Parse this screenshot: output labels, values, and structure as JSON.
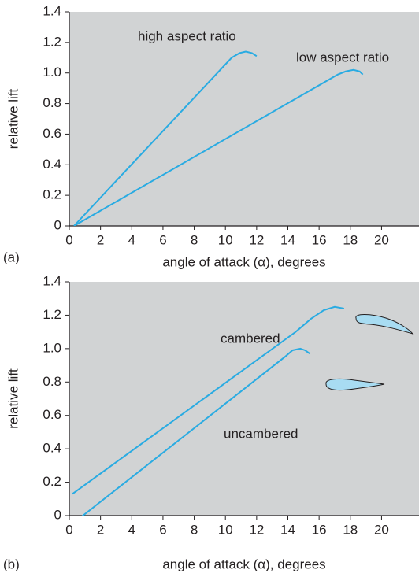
{
  "chart_data": [
    {
      "type": "line",
      "panel_label": "(a)",
      "xlabel": "angle of attack (α), degrees",
      "ylabel": "relative lift",
      "xlim": [
        0,
        22.4
      ],
      "ylim": [
        0,
        1.4
      ],
      "xticks": [
        0,
        2,
        4,
        6,
        8,
        10,
        12,
        14,
        16,
        18,
        20
      ],
      "yticks": [
        0,
        0.2,
        0.4,
        0.6,
        0.8,
        {
          "value": 1.0,
          "label": "1.0"
        },
        1.2,
        1.4
      ],
      "series": [
        {
          "name": "high aspect ratio",
          "color": "#29abe2",
          "x": [
            0.3,
            10.4,
            10.9,
            11.3,
            11.7,
            12.0
          ],
          "values": [
            0,
            1.1,
            1.13,
            1.14,
            1.13,
            1.11
          ]
        },
        {
          "name": "low aspect ratio",
          "color": "#29abe2",
          "x": [
            0.3,
            17.2,
            17.7,
            18.2,
            18.6,
            18.8
          ],
          "values": [
            0,
            0.99,
            1.01,
            1.02,
            1.01,
            0.99
          ]
        }
      ]
    },
    {
      "type": "line",
      "panel_label": "(b)",
      "xlabel": "angle of attack (α), degrees",
      "ylabel": "relative lift",
      "xlim": [
        0,
        22.4
      ],
      "ylim": [
        0,
        1.4
      ],
      "xticks": [
        0,
        2,
        4,
        6,
        8,
        10,
        12,
        14,
        16,
        18,
        20
      ],
      "yticks": [
        0,
        0.2,
        0.4,
        0.6,
        0.8,
        {
          "value": 1.0,
          "label": "1.0"
        },
        1.2,
        1.4
      ],
      "series": [
        {
          "name": "cambered",
          "color": "#29abe2",
          "x": [
            0.2,
            14.5,
            15.5,
            16.3,
            17.0,
            17.6
          ],
          "values": [
            0.13,
            1.1,
            1.18,
            1.23,
            1.25,
            1.24
          ]
        },
        {
          "name": "uncambered",
          "color": "#29abe2",
          "x": [
            0.6,
            13.8,
            14.3,
            14.8,
            15.1,
            15.4
          ],
          "values": [
            -0.02,
            0.95,
            0.99,
            1.0,
            0.99,
            0.97
          ]
        }
      ]
    }
  ]
}
